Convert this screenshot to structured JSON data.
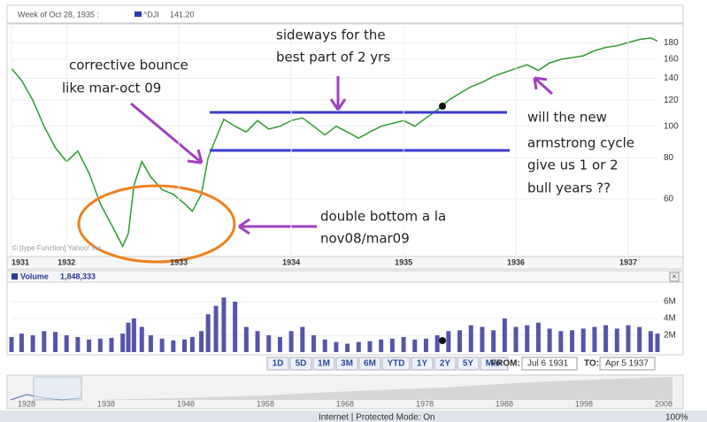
{
  "header": {
    "week": "Week of Oct 28, 1935 :",
    "last": "141.20"
  },
  "chart_data": [
    {
      "type": "line",
      "log_scale": true,
      "grid": true,
      "copyright": "© [type Function] Yahoo! Inc.",
      "x": [
        1931.51,
        1931.6,
        1931.7,
        1931.8,
        1931.9,
        1932.0,
        1932.1,
        1932.2,
        1932.3,
        1932.4,
        1932.5,
        1932.55,
        1932.6,
        1932.67,
        1932.75,
        1932.85,
        1932.95,
        1933.05,
        1933.12,
        1933.2,
        1933.26,
        1933.33,
        1933.4,
        1933.5,
        1933.6,
        1933.7,
        1933.8,
        1933.9,
        1934.0,
        1934.1,
        1934.2,
        1934.3,
        1934.4,
        1934.5,
        1934.6,
        1934.7,
        1934.8,
        1934.9,
        1935.0,
        1935.1,
        1935.2,
        1935.3,
        1935.4,
        1935.5,
        1935.6,
        1935.7,
        1935.8,
        1935.9,
        1936.0,
        1936.1,
        1936.2,
        1936.3,
        1936.4,
        1936.5,
        1936.6,
        1936.7,
        1936.8,
        1936.9,
        1937.0,
        1937.1,
        1937.2,
        1937.26
      ],
      "series": [
        {
          "name": "^DJI",
          "color": "#2e9a2e",
          "values": [
            150,
            138,
            120,
            100,
            86,
            78,
            84,
            72,
            58,
            50,
            43,
            47,
            66,
            78,
            70,
            64,
            62,
            58,
            55,
            62,
            80,
            92,
            105,
            100,
            96,
            104,
            98,
            100,
            104,
            106,
            100,
            94,
            100,
            96,
            92,
            96,
            100,
            102,
            104,
            100,
            106,
            112,
            120,
            126,
            132,
            136,
            142,
            146,
            150,
            154,
            148,
            156,
            160,
            162,
            164,
            170,
            174,
            176,
            180,
            184,
            186,
            182
          ]
        }
      ],
      "xlim": [
        1931.51,
        1937.26
      ],
      "xticks": [
        {
          "value": 1931.51,
          "label": "1931"
        },
        1932,
        1933,
        1934,
        1935,
        1936,
        1937
      ],
      "ylim": [
        40,
        204
      ],
      "yticks": [
        60,
        80,
        100,
        120,
        140,
        160,
        180
      ]
    },
    {
      "type": "bar",
      "title": "Volume",
      "current": "1,848,333",
      "color": "#5555aa",
      "x": [
        1931.51,
        1931.6,
        1931.7,
        1931.8,
        1931.9,
        1932.0,
        1932.1,
        1932.2,
        1932.3,
        1932.4,
        1932.5,
        1932.55,
        1932.6,
        1932.67,
        1932.75,
        1932.85,
        1932.95,
        1933.05,
        1933.12,
        1933.2,
        1933.26,
        1933.33,
        1933.4,
        1933.5,
        1933.6,
        1933.7,
        1933.8,
        1933.9,
        1934.0,
        1934.1,
        1934.2,
        1934.3,
        1934.4,
        1934.5,
        1934.6,
        1934.7,
        1934.8,
        1934.9,
        1935.0,
        1935.1,
        1935.2,
        1935.3,
        1935.4,
        1935.5,
        1935.6,
        1935.7,
        1935.8,
        1935.9,
        1936.0,
        1936.1,
        1936.2,
        1936.3,
        1936.4,
        1936.5,
        1936.6,
        1936.7,
        1936.8,
        1936.9,
        1937.0,
        1937.1,
        1937.2,
        1937.26
      ],
      "values": [
        1800000,
        2200000,
        2000000,
        2500000,
        2400000,
        2000000,
        1800000,
        1500000,
        1600000,
        1700000,
        2200000,
        3500000,
        4000000,
        3000000,
        2000000,
        1600000,
        1400000,
        1500000,
        1800000,
        2500000,
        4500000,
        5500000,
        6500000,
        6000000,
        3000000,
        2500000,
        2000000,
        1800000,
        2500000,
        3000000,
        2000000,
        1500000,
        1200000,
        1000000,
        1200000,
        1300000,
        1500000,
        1600000,
        1800000,
        1500000,
        1600000,
        2000000,
        2500000,
        2600000,
        3200000,
        3000000,
        2600000,
        4000000,
        3000000,
        3200000,
        3500000,
        2800000,
        2500000,
        2600000,
        2800000,
        3000000,
        3200000,
        2800000,
        3200000,
        3000000,
        2500000,
        2200000
      ],
      "xlim": [
        1931.51,
        1937.26
      ],
      "ylim": [
        0,
        8000000
      ],
      "yticks": [
        {
          "value": 2000000,
          "label": "2M"
        },
        {
          "value": 4000000,
          "label": "4M"
        },
        {
          "value": 6000000,
          "label": "6M"
        }
      ]
    }
  ],
  "annotations": [
    "sideways for the",
    "best part of 2 yrs",
    "corrective bounce",
    "like mar-oct 09",
    "will the new",
    "armstrong cycle",
    "give us 1 or 2",
    "bull years ??",
    "double bottom a la",
    "nov08/mar09"
  ],
  "controls": {
    "ranges": [
      "1D",
      "5D",
      "1M",
      "3M",
      "6M",
      "YTD",
      "1Y",
      "2Y",
      "5Y",
      "Max"
    ],
    "from_label": "FROM:",
    "from": "Jul 6 1931",
    "to_label": "TO:",
    "to": "Apr 5 1937"
  },
  "overview": {
    "years": [
      "1928",
      "1938",
      "1948",
      "1958",
      "1968",
      "1978",
      "1988",
      "1998",
      "2008"
    ]
  },
  "status": {
    "text": "Internet | Protected Mode: On",
    "zoom": "100%"
  }
}
